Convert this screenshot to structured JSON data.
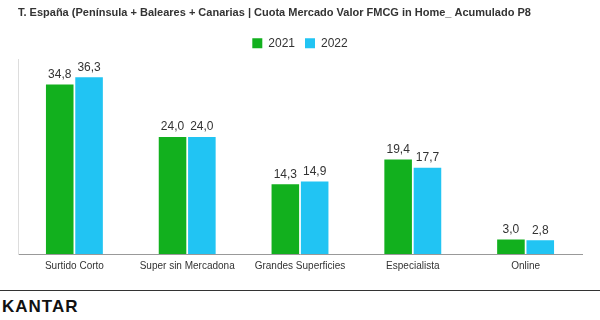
{
  "chart_data": {
    "type": "bar",
    "title": "T. España (Península + Baleares + Canarias | Cuota Mercado Valor FMCG in Home_ Acumulado P8",
    "categories": [
      "Surtido Corto",
      "Super sin Mercadona",
      "Grandes Superficies",
      "Especialista",
      "Online"
    ],
    "series": [
      {
        "name": "2021",
        "color": "#12b01e",
        "values": [
          34.8,
          24.0,
          14.3,
          19.4,
          3.0
        ],
        "value_labels": [
          "34,8",
          "24,0",
          "14,3",
          "19,4",
          "3,0"
        ]
      },
      {
        "name": "2022",
        "color": "#21c4f3",
        "values": [
          36.3,
          24.0,
          14.9,
          17.7,
          2.8
        ],
        "value_labels": [
          "36,3",
          "24,0",
          "14,9",
          "17,7",
          "2,8"
        ]
      }
    ],
    "ylim": [
      0,
      40
    ],
    "grid": false,
    "legend": "top",
    "data_labels": true,
    "tick_labels": "x",
    "source": "KANTAR"
  }
}
